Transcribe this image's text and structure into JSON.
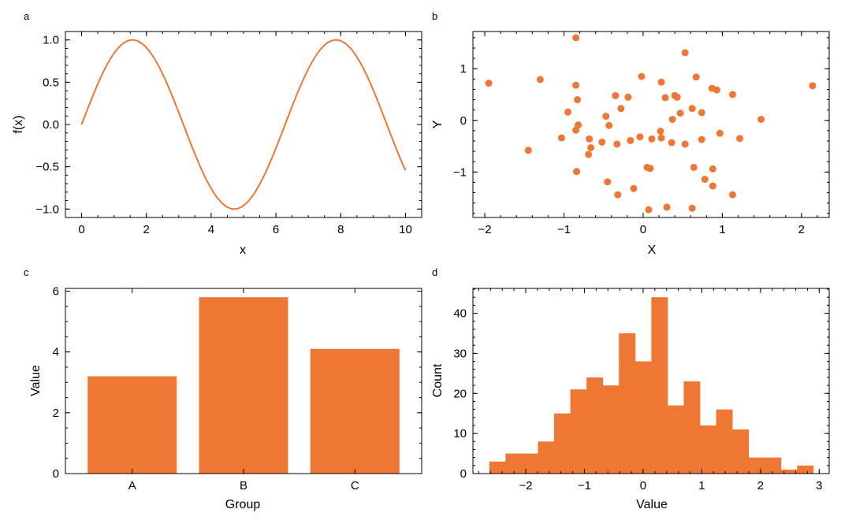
{
  "colors": {
    "accent": "#ee7733",
    "axis": "#000000",
    "background": "#ffffff"
  },
  "chart_data": [
    {
      "id": "a",
      "panel_label": "a",
      "type": "line",
      "function": "sin",
      "xlabel": "x",
      "ylabel": "f(x)",
      "xlim": [
        -0.5,
        10.5
      ],
      "ylim": [
        -1.1,
        1.1
      ],
      "xticks": [
        0,
        2,
        4,
        6,
        8,
        10
      ],
      "yticks": [
        -1.0,
        -0.5,
        0.0,
        0.5,
        1.0
      ],
      "xtick_labels": [
        "0",
        "2",
        "4",
        "6",
        "8",
        "10"
      ],
      "ytick_labels": [
        "−1.0",
        "−0.5",
        "0.0",
        "0.5",
        "1.0"
      ],
      "x_range": [
        0,
        10
      ],
      "grid": false
    },
    {
      "id": "b",
      "panel_label": "b",
      "type": "scatter",
      "xlabel": "X",
      "ylabel": "Y",
      "xlim": [
        -2.15,
        2.35
      ],
      "ylim": [
        -1.88,
        1.72
      ],
      "xticks": [
        -2,
        -1,
        0,
        1,
        2
      ],
      "yticks": [
        -1,
        0,
        1
      ],
      "xtick_labels": [
        "−2",
        "−1",
        "0",
        "1",
        "2"
      ],
      "ytick_labels": [
        "−1",
        "0",
        "1"
      ],
      "grid": false,
      "points": [
        [
          -1.95,
          0.72
        ],
        [
          -1.45,
          -0.58
        ],
        [
          -1.3,
          0.79
        ],
        [
          -1.03,
          -0.34
        ],
        [
          -0.95,
          0.16
        ],
        [
          -0.85,
          1.6
        ],
        [
          -0.85,
          0.68
        ],
        [
          -0.85,
          -0.19
        ],
        [
          -0.83,
          0.4
        ],
        [
          -0.82,
          -0.09
        ],
        [
          -0.84,
          -0.99
        ],
        [
          -0.68,
          -0.36
        ],
        [
          -0.66,
          -0.53
        ],
        [
          -0.69,
          -0.66
        ],
        [
          -0.52,
          -0.42
        ],
        [
          -0.47,
          0.08
        ],
        [
          -0.43,
          -0.1
        ],
        [
          -0.45,
          -1.19
        ],
        [
          -0.35,
          0.48
        ],
        [
          -0.33,
          -0.46
        ],
        [
          -0.32,
          -1.44
        ],
        [
          -0.28,
          0.23
        ],
        [
          -0.19,
          0.45
        ],
        [
          -0.16,
          -0.39
        ],
        [
          -0.12,
          -1.32
        ],
        [
          -0.04,
          -0.32
        ],
        [
          -0.02,
          0.85
        ],
        [
          0.05,
          -0.91
        ],
        [
          0.09,
          -0.93
        ],
        [
          0.11,
          -0.36
        ],
        [
          0.07,
          -1.73
        ],
        [
          0.22,
          -0.21
        ],
        [
          0.23,
          0.74
        ],
        [
          0.23,
          -0.34
        ],
        [
          0.28,
          0.44
        ],
        [
          0.3,
          -1.68
        ],
        [
          0.37,
          0.02
        ],
        [
          0.36,
          -0.43
        ],
        [
          0.4,
          0.48
        ],
        [
          0.43,
          0.45
        ],
        [
          0.47,
          0.14
        ],
        [
          0.53,
          -0.46
        ],
        [
          0.53,
          1.31
        ],
        [
          0.62,
          0.23
        ],
        [
          0.64,
          -0.91
        ],
        [
          0.62,
          -1.7
        ],
        [
          0.67,
          0.84
        ],
        [
          0.74,
          -0.37
        ],
        [
          0.74,
          0.15
        ],
        [
          0.78,
          -1.14
        ],
        [
          0.87,
          0.62
        ],
        [
          0.88,
          -0.94
        ],
        [
          0.88,
          -1.27
        ],
        [
          0.93,
          0.59
        ],
        [
          0.97,
          -0.25
        ],
        [
          1.13,
          0.5
        ],
        [
          1.13,
          -1.44
        ],
        [
          1.22,
          -0.35
        ],
        [
          1.49,
          0.02
        ],
        [
          2.14,
          0.67
        ]
      ]
    },
    {
      "id": "c",
      "panel_label": "c",
      "type": "bar",
      "xlabel": "Group",
      "ylabel": "Value",
      "categories": [
        "A",
        "B",
        "C"
      ],
      "values": [
        3.2,
        5.8,
        4.1
      ],
      "ylim": [
        0,
        6.09
      ],
      "yticks": [
        0,
        2,
        4,
        6
      ],
      "ytick_labels": [
        "0",
        "2",
        "4",
        "6"
      ],
      "grid": false
    },
    {
      "id": "d",
      "panel_label": "d",
      "type": "bar",
      "subtype": "histogram",
      "xlabel": "Value",
      "ylabel": "Count",
      "bins_start": -2.62,
      "bin_width": 0.276,
      "counts": [
        3,
        5,
        5,
        8,
        15,
        21,
        24,
        22,
        35,
        28,
        44,
        17,
        23,
        12,
        16,
        11,
        4,
        4,
        1,
        2
      ],
      "xlim": [
        -2.9,
        3.17
      ],
      "ylim": [
        0,
        46.2
      ],
      "xticks": [
        -2,
        -1,
        0,
        1,
        2,
        3
      ],
      "yticks": [
        0,
        10,
        20,
        30,
        40
      ],
      "xtick_labels": [
        "−2",
        "−1",
        "0",
        "1",
        "2",
        "3"
      ],
      "ytick_labels": [
        "0",
        "10",
        "20",
        "30",
        "40"
      ],
      "grid": false
    }
  ]
}
